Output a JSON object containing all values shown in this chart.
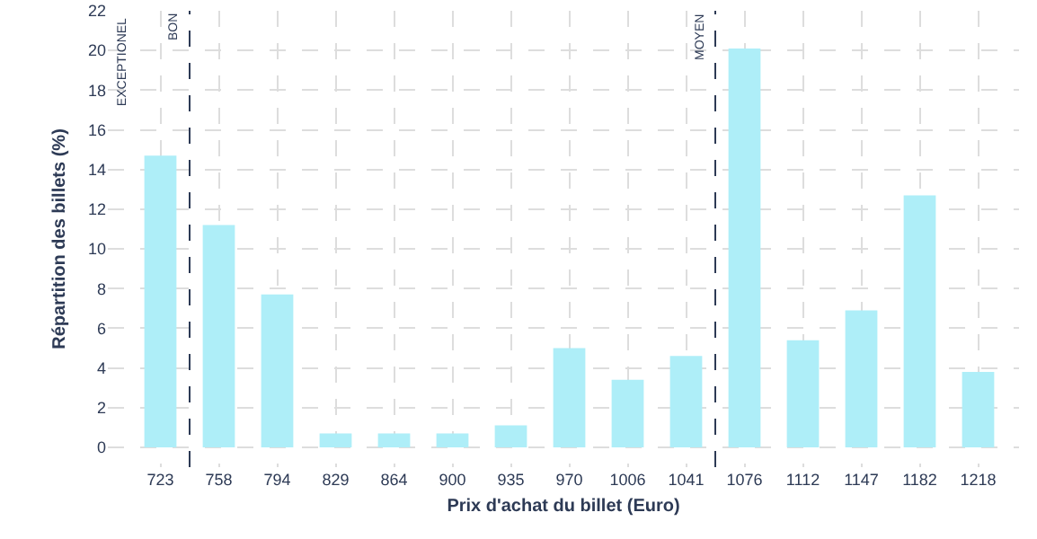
{
  "chart_data": {
    "type": "bar",
    "xlabel": "Prix d'achat du billet (Euro)",
    "ylabel": "Répartition des billets (%)",
    "categories": [
      "723",
      "758",
      "794",
      "829",
      "864",
      "900",
      "935",
      "970",
      "1006",
      "1041",
      "1076",
      "1112",
      "1147",
      "1182",
      "1218"
    ],
    "values": [
      14.7,
      11.2,
      7.7,
      0.7,
      0.7,
      0.7,
      1.1,
      5.0,
      3.4,
      4.6,
      20.1,
      5.4,
      6.9,
      12.7,
      3.8
    ],
    "color": "#aeeef8",
    "ylim": [
      -1,
      22
    ],
    "yticks": [
      0,
      2,
      4,
      6,
      8,
      10,
      12,
      14,
      16,
      18,
      20,
      22
    ],
    "grid": true,
    "annotations": [
      "EXCEPTIONEL",
      "BON",
      "MOYEN"
    ]
  }
}
